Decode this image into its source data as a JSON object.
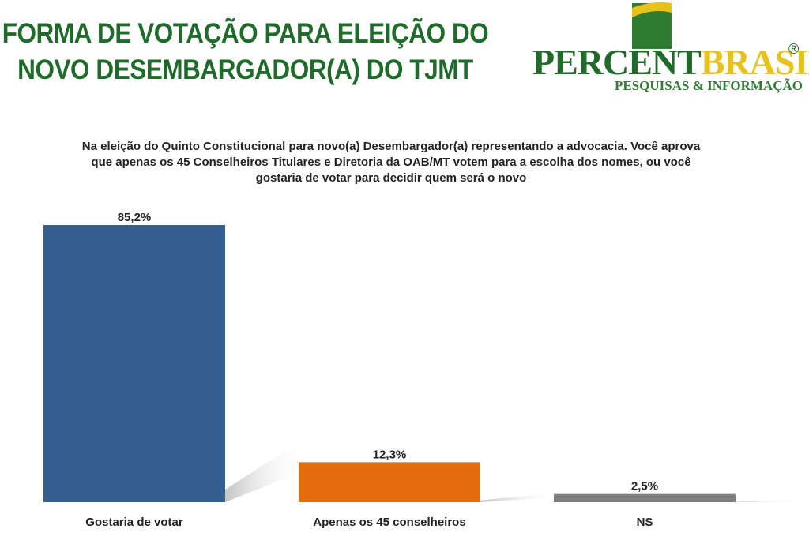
{
  "header": {
    "title_line1": "FORMA DE VOTAÇÃO PARA ELEIÇÃO DO",
    "title_line2": "NOVO DESEMBARGADOR(A) DO TJMT",
    "title_color": "#1f6b2a"
  },
  "logo": {
    "word_part1": "PERCENT",
    "word_part2": "BRASIL",
    "registered": "®",
    "tagline": "PESQUISAS & INFORMAÇÃO",
    "green": "#1f6b2a",
    "yellow": "#e8c21a"
  },
  "question": "Na eleição do Quinto Constitucional para novo(a) Desembargador(a) representando a advocacia. Você aprova que apenas os 45 Conselheiros Titulares e Diretoria da OAB/MT votem para a escolha dos nomes, ou você gostaria de votar para decidir quem será o novo",
  "chart_data": {
    "type": "bar",
    "categories": [
      "Gostaria de votar",
      "Apenas os 45 conselheiros",
      "NS"
    ],
    "values": [
      85.2,
      12.3,
      2.5
    ],
    "value_labels": [
      "85,2%",
      "12,3%",
      "2,5%"
    ],
    "colors": [
      "#365f91",
      "#e46c0a",
      "#7f7f7f"
    ],
    "ylim": [
      0,
      85.2
    ],
    "grid": false,
    "legend": "none"
  }
}
